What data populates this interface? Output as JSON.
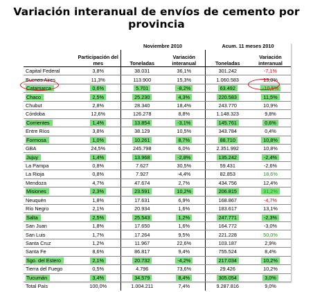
{
  "title": {
    "line1": "Variación interanual de envíos de cemento por",
    "line2": "provincia"
  },
  "colors": {
    "highlight": "#7be07b",
    "negative": "#e00000",
    "positive": "#0aa000",
    "circle": "#d01010"
  },
  "table": {
    "group_headers": {
      "nov": "Noviembre 2010",
      "acum": "Acum. 11 meses 2010"
    },
    "headers": {
      "participacion": "Participación del mes",
      "toneladas_nov": "Toneladas",
      "variacion_nov": "Variación interanual",
      "toneladas_acum": "Toneladas",
      "variacion_acum": "Variación interanual"
    },
    "rows": [
      {
        "prov": "Capital Federal",
        "part": "3,8%",
        "ton": "38.031",
        "var": "36,1%",
        "tona": "301.242",
        "vara": "-7,1%",
        "hl": false,
        "vara_color": "neg"
      },
      {
        "prov": "Buenos Aires",
        "part": "11,3%",
        "ton": "113.900",
        "var": "15,3%",
        "tona": "1.060.583",
        "vara": "13,0%",
        "hl": false
      },
      {
        "prov": "Catamarca",
        "part": "0,6%",
        "ton": "5.701",
        "var": "-8,2%",
        "tona": "63.492",
        "vara": "-10,5%",
        "hl": true,
        "vara_color": "neg"
      },
      {
        "prov": "Chaco",
        "part": "2,5%",
        "ton": "25.230",
        "var": "4,3%",
        "tona": "220.583",
        "vara": "11,5%",
        "hl": true
      },
      {
        "prov": "Chubut",
        "part": "2,8%",
        "ton": "28.340",
        "var": "18,4%",
        "tona": "243.770",
        "vara": "10,9%",
        "hl": false
      },
      {
        "prov": "Córdoba",
        "part": "12,6%",
        "ton": "126.278",
        "var": "8,8%",
        "tona": "1.148.323",
        "vara": "9,8%",
        "hl": false
      },
      {
        "prov": "Corrientes",
        "part": "1,4%",
        "ton": "13.854",
        "var": "-3,1%",
        "tona": "145.761",
        "vara": "0,6%",
        "hl": true
      },
      {
        "prov": "Entre Ríos",
        "part": "3,8%",
        "ton": "38.129",
        "var": "10,5%",
        "tona": "343.784",
        "vara": "0,4%",
        "hl": false
      },
      {
        "prov": "Formosa",
        "part": "1,0%",
        "ton": "10.261",
        "var": "8,7%",
        "tona": "88.710",
        "vara": "10,8%",
        "hl": true
      },
      {
        "prov": "GBA",
        "part": "24,5%",
        "ton": "245.798",
        "var": "6,0%",
        "tona": "2.351.992",
        "vara": "10,8%",
        "hl": false
      },
      {
        "prov": "Jujuy",
        "part": "1,4%",
        "ton": "13.968",
        "var": "-2,8%",
        "tona": "135.242",
        "vara": "-2,4%",
        "hl": true
      },
      {
        "prov": "La Pampa",
        "part": "0,8%",
        "ton": "7.627",
        "var": "30,5%",
        "tona": "59.431",
        "vara": "-2,6%",
        "hl": false
      },
      {
        "prov": "La Rioja",
        "part": "0,8%",
        "ton": "7.927",
        "var": "-4,4%",
        "tona": "82.853",
        "vara": "18,6%",
        "hl": false,
        "vara_color": "pos"
      },
      {
        "prov": "Mendoza",
        "part": "4,7%",
        "ton": "47.674",
        "var": "2,7%",
        "tona": "434.756",
        "vara": "12,4%",
        "hl": false
      },
      {
        "prov": "Misiones",
        "part": "2,3%",
        "ton": "23.591",
        "var": "10,2%",
        "tona": "206.815",
        "vara": "31,2%",
        "hl": true,
        "vara_color": "pos"
      },
      {
        "prov": "Neuquén",
        "part": "1,8%",
        "ton": "17.631",
        "var": "6,9%",
        "tona": "168.867",
        "vara": "-4,7%",
        "hl": false,
        "vara_color": "neg"
      },
      {
        "prov": "Río Negro",
        "part": "2,1%",
        "ton": "20.934",
        "var": "1,6%",
        "tona": "183.617",
        "vara": "13,1%",
        "hl": false
      },
      {
        "prov": "Salta",
        "part": "2,5%",
        "ton": "25.543",
        "var": "1,2%",
        "tona": "247.771",
        "vara": "-2,3%",
        "hl": true
      },
      {
        "prov": "San Juan",
        "part": "1,8%",
        "ton": "17.650",
        "var": "1,6%",
        "tona": "164.772",
        "vara": "-3,0%",
        "hl": false
      },
      {
        "prov": "San Luis",
        "part": "1,7%",
        "ton": "17.264",
        "var": "9,5%",
        "tona": "221.228",
        "vara": "50,0%",
        "hl": false,
        "vara_color": "pos"
      },
      {
        "prov": "Santa Cruz",
        "part": "1,2%",
        "ton": "11.967",
        "var": "22,6%",
        "tona": "103.187",
        "vara": "2,9%",
        "hl": false
      },
      {
        "prov": "Santa Fe",
        "part": "8,6%",
        "ton": "86.817",
        "var": "9,4%",
        "tona": "755.524",
        "vara": "8,4%",
        "hl": false
      },
      {
        "prov": "Sgo. del Estero",
        "part": "2,1%",
        "ton": "20.732",
        "var": "-4,2%",
        "tona": "217.034",
        "vara": "10,2%",
        "hl": true
      },
      {
        "prov": "Tierra del Fuego",
        "part": "0,5%",
        "ton": "4.796",
        "var": "73,6%",
        "tona": "29.426",
        "vara": "10,2%",
        "hl": false
      },
      {
        "prov": "Tucumán",
        "part": "3,4%",
        "ton": "34.579",
        "var": "8,4%",
        "tona": "305.054",
        "vara": "3,0%",
        "hl": true
      }
    ],
    "total": {
      "prov": "Total País",
      "part": "100,0%",
      "ton": "1.004.211",
      "var": "7,4%",
      "tona": "9.287.816",
      "vara": "9,0%"
    }
  }
}
